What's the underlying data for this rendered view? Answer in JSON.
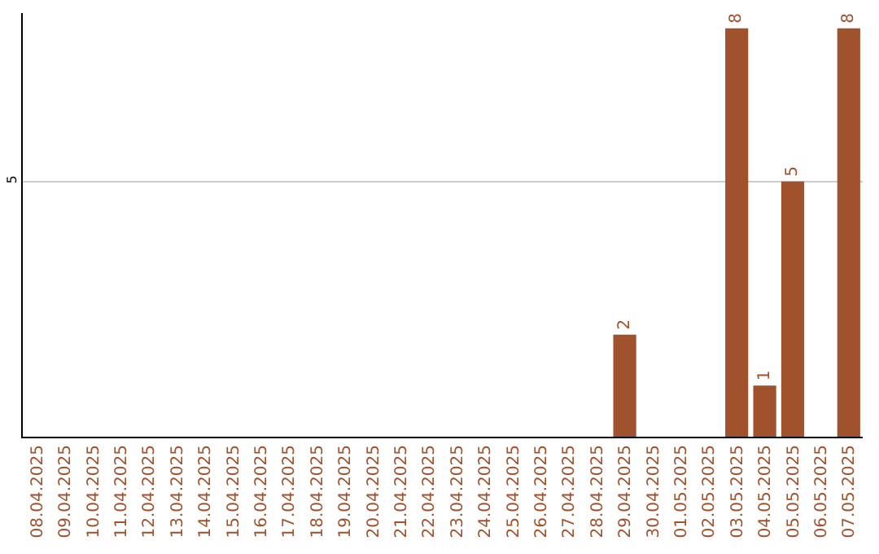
{
  "chart_data": {
    "type": "bar",
    "categories": [
      "08.04.2025",
      "09.04.2025",
      "10.04.2025",
      "11.04.2025",
      "12.04.2025",
      "13.04.2025",
      "14.04.2025",
      "15.04.2025",
      "16.04.2025",
      "17.04.2025",
      "18.04.2025",
      "19.04.2025",
      "20.04.2025",
      "21.04.2025",
      "22.04.2025",
      "23.04.2025",
      "24.04.2025",
      "25.04.2025",
      "26.04.2025",
      "27.04.2025",
      "28.04.2025",
      "29.04.2025",
      "30.04.2025",
      "01.05.2025",
      "02.05.2025",
      "03.05.2025",
      "04.05.2025",
      "05.05.2025",
      "06.05.2025",
      "07.05.2025"
    ],
    "values": [
      null,
      null,
      null,
      null,
      null,
      null,
      null,
      null,
      null,
      null,
      null,
      null,
      null,
      null,
      null,
      null,
      null,
      null,
      null,
      null,
      null,
      2,
      null,
      null,
      null,
      8,
      1,
      5,
      null,
      8
    ],
    "color": "#a0522d",
    "ylim": [
      0,
      8.3
    ],
    "yticks": [
      5
    ],
    "grid": "y",
    "data_labels": true,
    "legend": false
  }
}
